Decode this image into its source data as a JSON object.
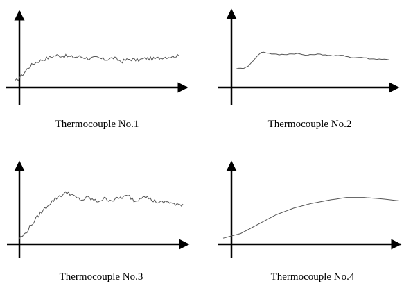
{
  "chart_data": [
    {
      "type": "line",
      "caption": "Thermocouple No.1",
      "profile": "noisy-fast-rise",
      "color": "#555555",
      "x": [
        0,
        0.02,
        0.05,
        0.08,
        0.12,
        0.16,
        0.2,
        0.25,
        0.3,
        0.35,
        0.4,
        0.45,
        0.5,
        0.55,
        0.6,
        0.65,
        0.7,
        0.75,
        0.8,
        0.85,
        0.9,
        0.95,
        1.0
      ],
      "y": [
        0.05,
        0.1,
        0.18,
        0.28,
        0.36,
        0.4,
        0.44,
        0.48,
        0.47,
        0.45,
        0.46,
        0.43,
        0.44,
        0.41,
        0.44,
        0.38,
        0.42,
        0.4,
        0.43,
        0.42,
        0.45,
        0.46,
        0.47
      ]
    },
    {
      "type": "line",
      "caption": "Thermocouple No.2",
      "profile": "smooth-step",
      "color": "#555555",
      "x": [
        0,
        0.05,
        0.09,
        0.13,
        0.17,
        0.22,
        0.28,
        0.34,
        0.4,
        0.46,
        0.52,
        0.58,
        0.64,
        0.7,
        0.76,
        0.82,
        0.88,
        0.94,
        1.0
      ],
      "y": [
        0.26,
        0.27,
        0.32,
        0.44,
        0.54,
        0.51,
        0.49,
        0.5,
        0.51,
        0.48,
        0.5,
        0.49,
        0.47,
        0.48,
        0.44,
        0.45,
        0.42,
        0.42,
        0.41
      ]
    },
    {
      "type": "line",
      "caption": "Thermocouple No.3",
      "profile": "rise-then-noisy-plateau",
      "color": "#555555",
      "x": [
        0,
        0.03,
        0.07,
        0.12,
        0.18,
        0.24,
        0.3,
        0.34,
        0.38,
        0.42,
        0.47,
        0.52,
        0.57,
        0.62,
        0.67,
        0.71,
        0.76,
        0.81,
        0.86,
        0.91,
        0.96,
        1.0
      ],
      "y": [
        0.05,
        0.1,
        0.24,
        0.4,
        0.56,
        0.68,
        0.74,
        0.66,
        0.62,
        0.66,
        0.6,
        0.64,
        0.62,
        0.66,
        0.68,
        0.6,
        0.7,
        0.62,
        0.58,
        0.6,
        0.54,
        0.56
      ]
    },
    {
      "type": "line",
      "caption": "Thermocouple No.4",
      "profile": "smooth",
      "color": "#555555",
      "x": [
        0,
        0.1,
        0.2,
        0.3,
        0.4,
        0.5,
        0.6,
        0.7,
        0.8,
        0.9,
        1.0
      ],
      "y": [
        0.05,
        0.12,
        0.26,
        0.4,
        0.5,
        0.57,
        0.62,
        0.66,
        0.66,
        0.64,
        0.61
      ]
    }
  ]
}
